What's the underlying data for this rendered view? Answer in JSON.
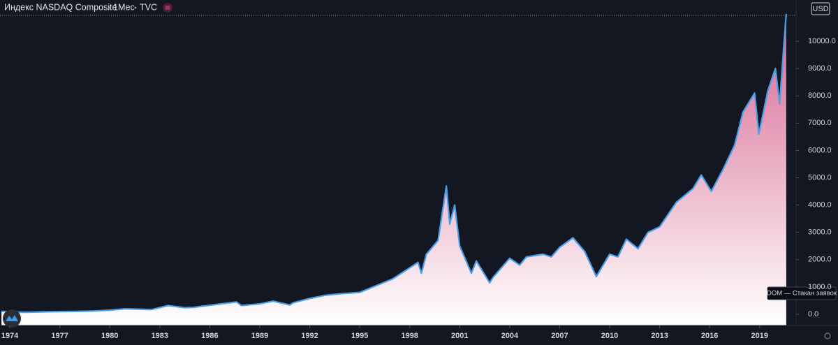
{
  "header": {
    "symbol": "Индекс NASDAQ Composite",
    "interval": "1Мес",
    "source": "TVC",
    "currency": "USD",
    "tooltip": "DOM — Стакан заявок"
  },
  "chart_data": {
    "type": "area",
    "x": [
      1973.5,
      1974.5,
      1975,
      1976,
      1977,
      1978,
      1979,
      1980,
      1980.9,
      1981.5,
      1982.5,
      1983.5,
      1984.5,
      1985,
      1986,
      1987.6,
      1987.9,
      1989,
      1989.8,
      1990.8,
      1991,
      1992,
      1993,
      1994,
      1995,
      1996,
      1997,
      1998.5,
      1998.7,
      1999,
      1999.7,
      2000.2,
      2000.4,
      2000.7,
      2001,
      2001.7,
      2002,
      2002.8,
      2003,
      2004,
      2004.6,
      2005,
      2006,
      2006.5,
      2007,
      2007.8,
      2008.5,
      2009.2,
      2010,
      2010.5,
      2011,
      2011.7,
      2012.3,
      2013,
      2014,
      2015,
      2015.5,
      2016.1,
      2016.8,
      2017.5,
      2018,
      2018.7,
      2018.95,
      2019.5,
      2019.95,
      2020.2,
      2020.45,
      2020.6
    ],
    "values": [
      105,
      75,
      70,
      90,
      98,
      105,
      120,
      150,
      200,
      190,
      170,
      320,
      240,
      250,
      330,
      450,
      320,
      380,
      480,
      340,
      420,
      580,
      700,
      760,
      800,
      1050,
      1300,
      1900,
      1500,
      2200,
      2700,
      4700,
      3300,
      4000,
      2500,
      1500,
      1950,
      1150,
      1350,
      2050,
      1800,
      2100,
      2200,
      2100,
      2450,
      2800,
      2300,
      1380,
      2200,
      2100,
      2750,
      2400,
      3000,
      3200,
      4100,
      4600,
      5100,
      4500,
      5300,
      6200,
      7400,
      8100,
      6600,
      8200,
      9000,
      7700,
      9800,
      11000
    ],
    "color": "#4a9fea",
    "fill_color": "#d6658f",
    "xlim": [
      1973.41,
      2021.19
    ],
    "xticks": [
      1974,
      1977,
      1980,
      1983,
      1986,
      1989,
      1992,
      1995,
      1998,
      2001,
      2004,
      2007,
      2010,
      2013,
      2016,
      2019
    ],
    "ylim": [
      -410,
      11510
    ],
    "yticks": [
      {
        "value": 0,
        "label": "0.0"
      },
      {
        "value": 1000,
        "label": "1000.0"
      },
      {
        "value": 2000,
        "label": "2000.0"
      },
      {
        "value": 3000,
        "label": "3000.0"
      },
      {
        "value": 4000,
        "label": "4000.0"
      },
      {
        "value": 5000,
        "label": "5000.0"
      },
      {
        "value": 6000,
        "label": "6000.0"
      },
      {
        "value": 7000,
        "label": "7000.0"
      },
      {
        "value": 8000,
        "label": "8000.0"
      },
      {
        "value": 9000,
        "label": "9000.0"
      },
      {
        "value": 10000,
        "label": "10000.0"
      }
    ]
  }
}
